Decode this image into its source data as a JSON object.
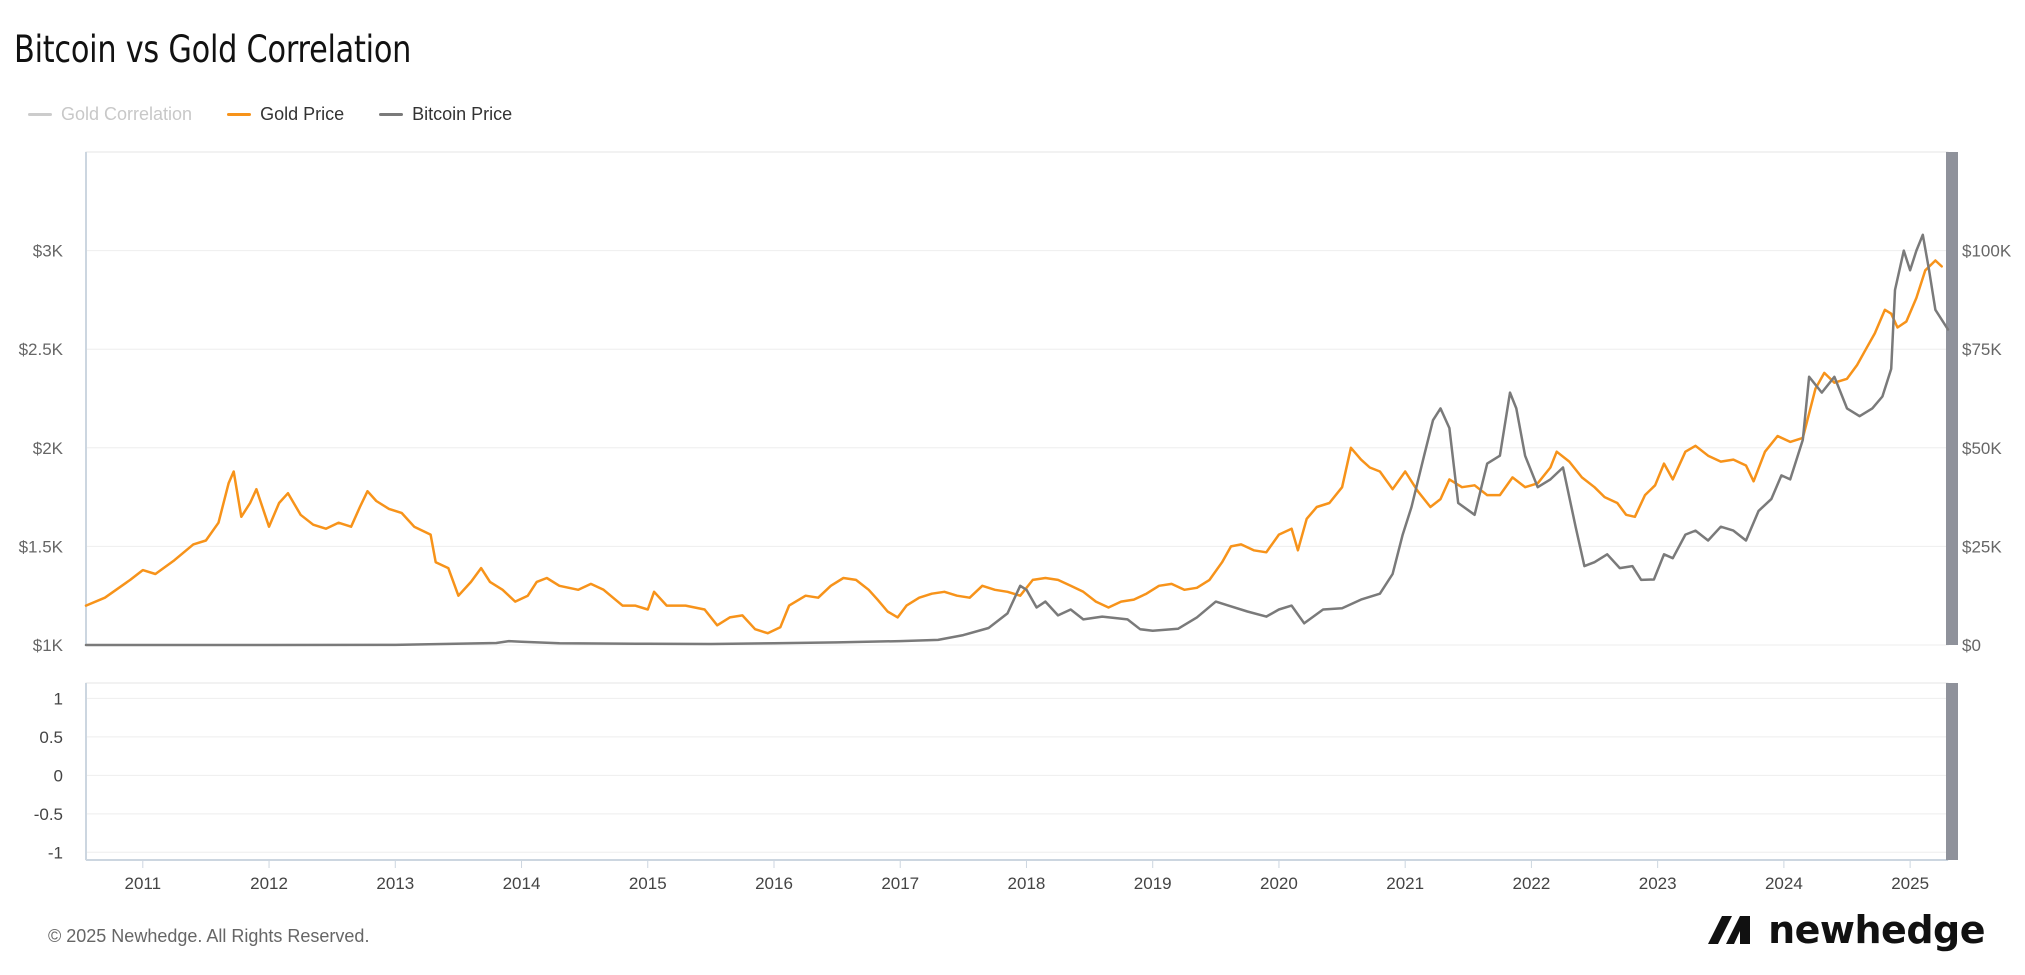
{
  "title": "Bitcoin vs Gold Correlation",
  "legend": [
    {
      "name": "Gold Correlation",
      "color": "#cccccc",
      "hidden": true
    },
    {
      "name": "Gold Price",
      "color": "#f7931a",
      "hidden": false
    },
    {
      "name": "Bitcoin Price",
      "color": "#7a7a7a",
      "hidden": false
    }
  ],
  "footer": "© 2025 Newhedge. All Rights Reserved.",
  "brand": "newhedge",
  "chart_data": {
    "type": "line",
    "title": "Bitcoin vs Gold Correlation",
    "x_ticks": [
      "2011",
      "2012",
      "2013",
      "2014",
      "2015",
      "2016",
      "2017",
      "2018",
      "2019",
      "2020",
      "2021",
      "2022",
      "2023",
      "2024",
      "2025"
    ],
    "x_range": [
      2010.55,
      2025.3
    ],
    "left_axis": {
      "ticks": [
        "$1K",
        "$1.5K",
        "$2K",
        "$2.5K",
        "$3K"
      ],
      "values": [
        1000,
        1500,
        2000,
        2500,
        3000
      ],
      "range": [
        1000,
        3500
      ]
    },
    "right_axis": {
      "ticks": [
        "$0",
        "$25K",
        "$50K",
        "$75K",
        "$100K"
      ],
      "values": [
        0,
        25000,
        50000,
        75000,
        100000
      ],
      "range": [
        0,
        125000
      ]
    },
    "correlation_axis": {
      "ticks": [
        "1",
        "0.5",
        "0",
        "-0.5",
        "-1"
      ],
      "values": [
        1,
        0.5,
        0,
        -0.5,
        -1
      ],
      "range": [
        -1.1,
        1.2
      ]
    },
    "grid": true,
    "legend_position": "top-left",
    "series": [
      {
        "name": "Gold Price",
        "axis": "left",
        "color": "#f7931a",
        "points": [
          [
            2010.55,
            1200
          ],
          [
            2010.7,
            1240
          ],
          [
            2010.9,
            1330
          ],
          [
            2011.0,
            1380
          ],
          [
            2011.1,
            1360
          ],
          [
            2011.25,
            1430
          ],
          [
            2011.4,
            1510
          ],
          [
            2011.5,
            1530
          ],
          [
            2011.6,
            1620
          ],
          [
            2011.68,
            1820
          ],
          [
            2011.72,
            1880
          ],
          [
            2011.78,
            1650
          ],
          [
            2011.85,
            1720
          ],
          [
            2011.9,
            1790
          ],
          [
            2012.0,
            1600
          ],
          [
            2012.08,
            1720
          ],
          [
            2012.15,
            1770
          ],
          [
            2012.25,
            1660
          ],
          [
            2012.35,
            1610
          ],
          [
            2012.45,
            1590
          ],
          [
            2012.55,
            1620
          ],
          [
            2012.65,
            1600
          ],
          [
            2012.72,
            1700
          ],
          [
            2012.78,
            1780
          ],
          [
            2012.85,
            1730
          ],
          [
            2012.95,
            1690
          ],
          [
            2013.05,
            1670
          ],
          [
            2013.15,
            1600
          ],
          [
            2013.28,
            1560
          ],
          [
            2013.32,
            1420
          ],
          [
            2013.42,
            1390
          ],
          [
            2013.5,
            1250
          ],
          [
            2013.6,
            1320
          ],
          [
            2013.68,
            1390
          ],
          [
            2013.75,
            1320
          ],
          [
            2013.85,
            1280
          ],
          [
            2013.95,
            1220
          ],
          [
            2014.05,
            1250
          ],
          [
            2014.12,
            1320
          ],
          [
            2014.2,
            1340
          ],
          [
            2014.3,
            1300
          ],
          [
            2014.45,
            1280
          ],
          [
            2014.55,
            1310
          ],
          [
            2014.65,
            1280
          ],
          [
            2014.8,
            1200
          ],
          [
            2014.9,
            1200
          ],
          [
            2015.0,
            1180
          ],
          [
            2015.05,
            1270
          ],
          [
            2015.15,
            1200
          ],
          [
            2015.3,
            1200
          ],
          [
            2015.45,
            1180
          ],
          [
            2015.55,
            1100
          ],
          [
            2015.65,
            1140
          ],
          [
            2015.75,
            1150
          ],
          [
            2015.85,
            1080
          ],
          [
            2015.95,
            1060
          ],
          [
            2016.05,
            1090
          ],
          [
            2016.12,
            1200
          ],
          [
            2016.25,
            1250
          ],
          [
            2016.35,
            1240
          ],
          [
            2016.45,
            1300
          ],
          [
            2016.55,
            1340
          ],
          [
            2016.65,
            1330
          ],
          [
            2016.75,
            1280
          ],
          [
            2016.82,
            1230
          ],
          [
            2016.9,
            1170
          ],
          [
            2016.98,
            1140
          ],
          [
            2017.05,
            1200
          ],
          [
            2017.15,
            1240
          ],
          [
            2017.25,
            1260
          ],
          [
            2017.35,
            1270
          ],
          [
            2017.45,
            1250
          ],
          [
            2017.55,
            1240
          ],
          [
            2017.65,
            1300
          ],
          [
            2017.75,
            1280
          ],
          [
            2017.85,
            1270
          ],
          [
            2017.95,
            1250
          ],
          [
            2018.05,
            1330
          ],
          [
            2018.15,
            1340
          ],
          [
            2018.25,
            1330
          ],
          [
            2018.35,
            1300
          ],
          [
            2018.45,
            1270
          ],
          [
            2018.55,
            1220
          ],
          [
            2018.65,
            1190
          ],
          [
            2018.75,
            1220
          ],
          [
            2018.85,
            1230
          ],
          [
            2018.95,
            1260
          ],
          [
            2019.05,
            1300
          ],
          [
            2019.15,
            1310
          ],
          [
            2019.25,
            1280
          ],
          [
            2019.35,
            1290
          ],
          [
            2019.45,
            1330
          ],
          [
            2019.55,
            1420
          ],
          [
            2019.62,
            1500
          ],
          [
            2019.7,
            1510
          ],
          [
            2019.8,
            1480
          ],
          [
            2019.9,
            1470
          ],
          [
            2020.0,
            1560
          ],
          [
            2020.1,
            1590
          ],
          [
            2020.15,
            1480
          ],
          [
            2020.22,
            1640
          ],
          [
            2020.3,
            1700
          ],
          [
            2020.4,
            1720
          ],
          [
            2020.5,
            1800
          ],
          [
            2020.57,
            2000
          ],
          [
            2020.65,
            1940
          ],
          [
            2020.72,
            1900
          ],
          [
            2020.8,
            1880
          ],
          [
            2020.9,
            1790
          ],
          [
            2021.0,
            1880
          ],
          [
            2021.1,
            1780
          ],
          [
            2021.2,
            1700
          ],
          [
            2021.28,
            1740
          ],
          [
            2021.35,
            1840
          ],
          [
            2021.45,
            1800
          ],
          [
            2021.55,
            1810
          ],
          [
            2021.65,
            1760
          ],
          [
            2021.75,
            1760
          ],
          [
            2021.85,
            1850
          ],
          [
            2021.95,
            1800
          ],
          [
            2022.05,
            1820
          ],
          [
            2022.15,
            1900
          ],
          [
            2022.2,
            1980
          ],
          [
            2022.3,
            1930
          ],
          [
            2022.4,
            1850
          ],
          [
            2022.5,
            1800
          ],
          [
            2022.58,
            1750
          ],
          [
            2022.68,
            1720
          ],
          [
            2022.75,
            1660
          ],
          [
            2022.82,
            1650
          ],
          [
            2022.9,
            1760
          ],
          [
            2022.98,
            1810
          ],
          [
            2023.05,
            1920
          ],
          [
            2023.12,
            1840
          ],
          [
            2023.22,
            1980
          ],
          [
            2023.3,
            2010
          ],
          [
            2023.4,
            1960
          ],
          [
            2023.5,
            1930
          ],
          [
            2023.6,
            1940
          ],
          [
            2023.7,
            1910
          ],
          [
            2023.76,
            1830
          ],
          [
            2023.85,
            1980
          ],
          [
            2023.95,
            2060
          ],
          [
            2024.05,
            2030
          ],
          [
            2024.15,
            2050
          ],
          [
            2024.25,
            2300
          ],
          [
            2024.32,
            2380
          ],
          [
            2024.4,
            2330
          ],
          [
            2024.5,
            2350
          ],
          [
            2024.58,
            2420
          ],
          [
            2024.65,
            2500
          ],
          [
            2024.72,
            2580
          ],
          [
            2024.8,
            2700
          ],
          [
            2024.85,
            2680
          ],
          [
            2024.9,
            2610
          ],
          [
            2024.97,
            2640
          ],
          [
            2025.05,
            2760
          ],
          [
            2025.12,
            2900
          ],
          [
            2025.2,
            2950
          ],
          [
            2025.25,
            2920
          ]
        ]
      },
      {
        "name": "Bitcoin Price",
        "axis": "right",
        "color": "#7a7a7a",
        "points": [
          [
            2010.55,
            0
          ],
          [
            2012.0,
            5
          ],
          [
            2013.0,
            20
          ],
          [
            2013.8,
            500
          ],
          [
            2013.9,
            1000
          ],
          [
            2014.0,
            800
          ],
          [
            2014.3,
            450
          ],
          [
            2015.0,
            300
          ],
          [
            2015.5,
            250
          ],
          [
            2016.0,
            420
          ],
          [
            2016.5,
            650
          ],
          [
            2017.0,
            1000
          ],
          [
            2017.3,
            1300
          ],
          [
            2017.5,
            2500
          ],
          [
            2017.7,
            4300
          ],
          [
            2017.85,
            8000
          ],
          [
            2017.95,
            15000
          ],
          [
            2018.0,
            14000
          ],
          [
            2018.08,
            9500
          ],
          [
            2018.15,
            11000
          ],
          [
            2018.25,
            7500
          ],
          [
            2018.35,
            9000
          ],
          [
            2018.45,
            6500
          ],
          [
            2018.6,
            7200
          ],
          [
            2018.8,
            6500
          ],
          [
            2018.9,
            4000
          ],
          [
            2019.0,
            3600
          ],
          [
            2019.2,
            4100
          ],
          [
            2019.35,
            7000
          ],
          [
            2019.5,
            11000
          ],
          [
            2019.6,
            10000
          ],
          [
            2019.75,
            8500
          ],
          [
            2019.9,
            7200
          ],
          [
            2020.0,
            9000
          ],
          [
            2020.1,
            10000
          ],
          [
            2020.2,
            5500
          ],
          [
            2020.35,
            9000
          ],
          [
            2020.5,
            9300
          ],
          [
            2020.65,
            11500
          ],
          [
            2020.8,
            13000
          ],
          [
            2020.9,
            18000
          ],
          [
            2020.98,
            28000
          ],
          [
            2021.05,
            35000
          ],
          [
            2021.15,
            48000
          ],
          [
            2021.22,
            57000
          ],
          [
            2021.28,
            60000
          ],
          [
            2021.35,
            55000
          ],
          [
            2021.42,
            36000
          ],
          [
            2021.55,
            33000
          ],
          [
            2021.65,
            46000
          ],
          [
            2021.75,
            48000
          ],
          [
            2021.83,
            64000
          ],
          [
            2021.88,
            60000
          ],
          [
            2021.95,
            48000
          ],
          [
            2022.05,
            40000
          ],
          [
            2022.15,
            42000
          ],
          [
            2022.25,
            45000
          ],
          [
            2022.35,
            30000
          ],
          [
            2022.42,
            20000
          ],
          [
            2022.5,
            21000
          ],
          [
            2022.6,
            23000
          ],
          [
            2022.7,
            19500
          ],
          [
            2022.8,
            20000
          ],
          [
            2022.87,
            16500
          ],
          [
            2022.97,
            16600
          ],
          [
            2023.05,
            23000
          ],
          [
            2023.12,
            22000
          ],
          [
            2023.22,
            28000
          ],
          [
            2023.3,
            29000
          ],
          [
            2023.4,
            26500
          ],
          [
            2023.5,
            30000
          ],
          [
            2023.6,
            29000
          ],
          [
            2023.7,
            26500
          ],
          [
            2023.8,
            34000
          ],
          [
            2023.9,
            37000
          ],
          [
            2023.98,
            43000
          ],
          [
            2024.05,
            42000
          ],
          [
            2024.15,
            52000
          ],
          [
            2024.2,
            68000
          ],
          [
            2024.3,
            64000
          ],
          [
            2024.4,
            68000
          ],
          [
            2024.5,
            60000
          ],
          [
            2024.6,
            58000
          ],
          [
            2024.7,
            60000
          ],
          [
            2024.78,
            63000
          ],
          [
            2024.85,
            70000
          ],
          [
            2024.88,
            90000
          ],
          [
            2024.95,
            100000
          ],
          [
            2025.0,
            95000
          ],
          [
            2025.05,
            100000
          ],
          [
            2025.1,
            104000
          ],
          [
            2025.15,
            95000
          ],
          [
            2025.2,
            85000
          ],
          [
            2025.3,
            80000
          ]
        ]
      }
    ]
  }
}
